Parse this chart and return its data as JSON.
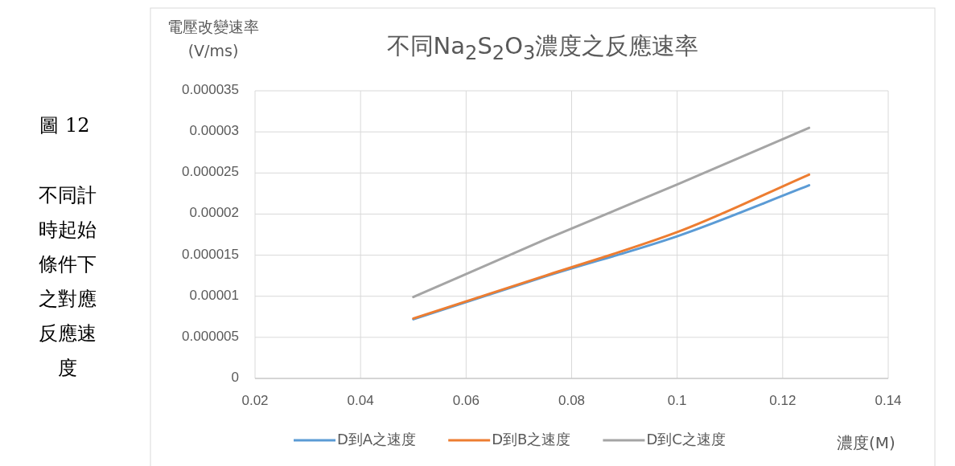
{
  "chart_data": {
    "type": "line",
    "title": "不同Na$_{2}$S$_{2}$O$_{3}$濃度之反應速率",
    "ylabel": "電壓改變速率 (V/ms)",
    "xlabel": "濃度(M)",
    "annotations": [
      "圖 12",
      "不同計時起始條件下之對應反應速度"
    ],
    "x": [
      0.05,
      0.075,
      0.1,
      0.125
    ],
    "series": [
      {
        "name": "D到A之速度",
        "color": "#5b9bd5",
        "values": [
          7.2e-06,
          1.24e-05,
          1.73e-05,
          2.35e-05
        ]
      },
      {
        "name": "D到B之速度",
        "color": "#ed7d31",
        "values": [
          7.3e-06,
          1.25e-05,
          1.78e-05,
          2.48e-05
        ]
      },
      {
        "name": "D到C之速度",
        "color": "#a5a5a5",
        "values": [
          9.9e-06,
          1.69e-05,
          2.36e-05,
          3.05e-05
        ]
      }
    ],
    "xlim": [
      0.02,
      0.14
    ],
    "xticks": [
      0.02,
      0.04,
      0.06,
      0.08,
      0.1,
      0.12,
      0.14
    ],
    "ylim": [
      0,
      3.5e-05
    ],
    "yticks": [
      0,
      {
        "value": 5e-06,
        "label": "0.000005"
      },
      {
        "value": 1e-05,
        "label": "0.00001"
      },
      {
        "value": 1.5e-05,
        "label": "0.000015"
      },
      {
        "value": 2e-05,
        "label": "0.00002"
      },
      {
        "value": 2.5e-05,
        "label": "0.000025"
      },
      {
        "value": 3e-05,
        "label": "0.00003"
      },
      {
        "value": 3.5e-05,
        "label": "0.000035"
      }
    ],
    "grid": true,
    "legend": "bottom",
    "marker": "none",
    "line_style": "solid"
  }
}
